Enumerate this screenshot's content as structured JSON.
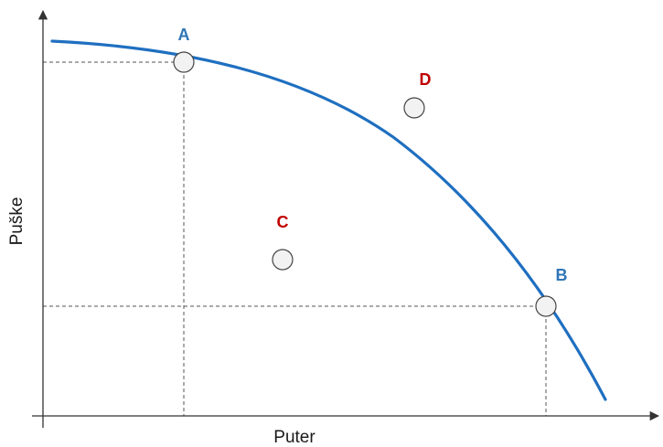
{
  "diagram": {
    "x_axis_label": "Puter",
    "y_axis_label": "Puške",
    "points": [
      {
        "label": "A",
        "on_curve": true,
        "color": "#2e75b6"
      },
      {
        "label": "B",
        "on_curve": true,
        "color": "#2e75b6"
      },
      {
        "label": "C",
        "on_curve": false,
        "color": "#c00000"
      },
      {
        "label": "D",
        "on_curve": false,
        "color": "#c00000"
      }
    ],
    "colors": {
      "curve": "#1f6fc0",
      "axis": "#333333",
      "guides": "#555555",
      "point_fill": "#f2f2f2",
      "point_stroke": "#444444"
    }
  }
}
